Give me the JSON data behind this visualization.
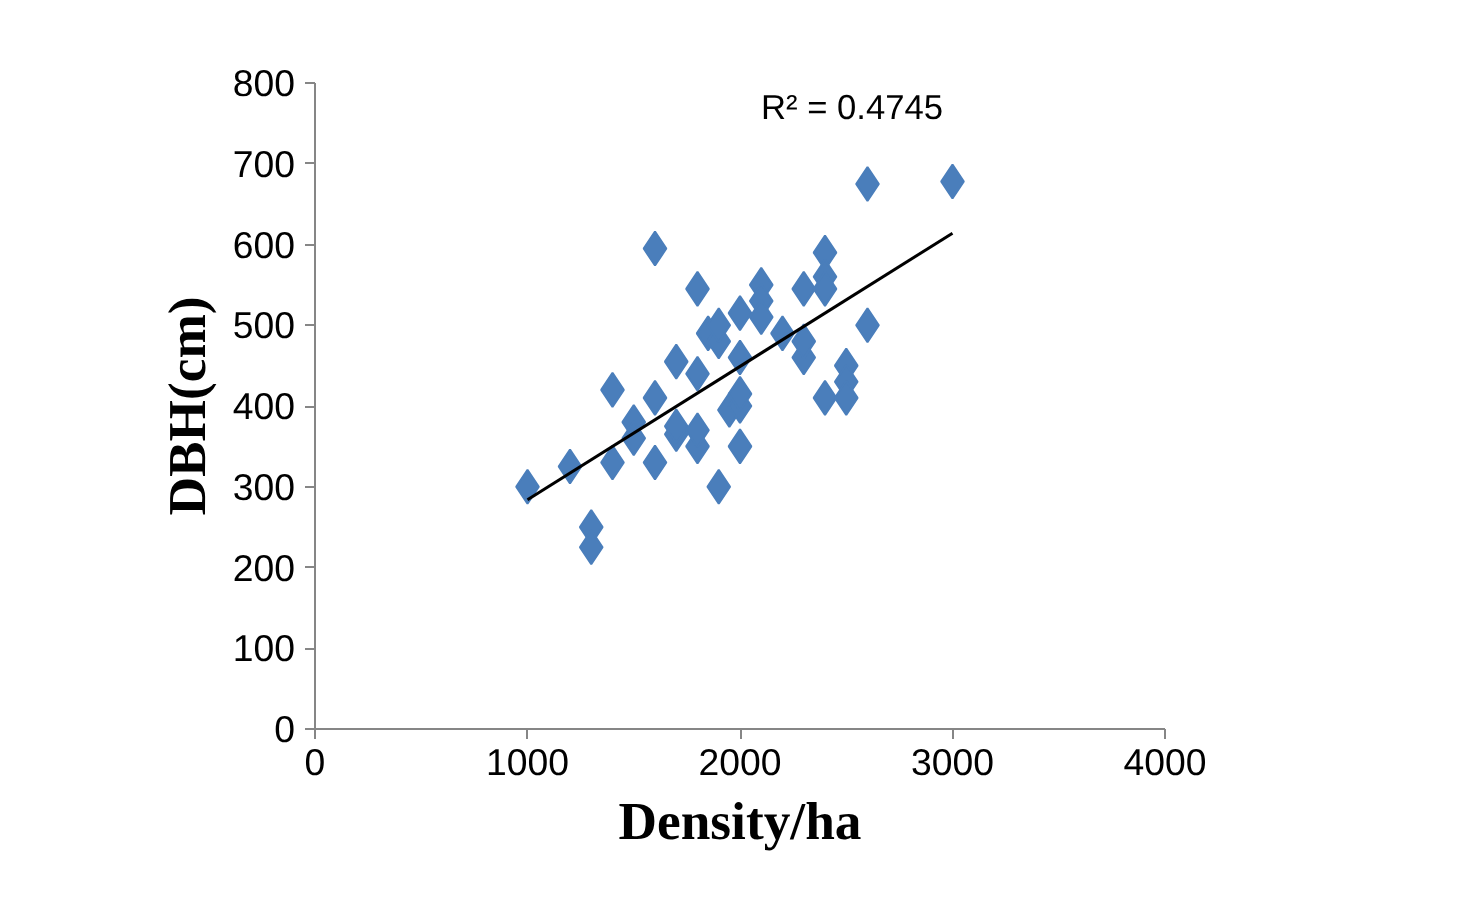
{
  "chart_data": {
    "type": "scatter",
    "xlabel": "Density/ha",
    "ylabel": "DBH(cm)",
    "xlim": [
      0,
      4000
    ],
    "xticks": [
      0,
      1000,
      2000,
      3000,
      4000
    ],
    "ylim": [
      0,
      800
    ],
    "yticks": [
      0,
      100,
      200,
      300,
      400,
      500,
      600,
      700,
      800
    ],
    "grid": false,
    "marker": "diamond",
    "annotations": [
      "R² = 0.4745"
    ],
    "series": [
      {
        "color": "#4a7ebb",
        "x": [
          1000,
          1200,
          1300,
          1300,
          1400,
          1400,
          1500,
          1500,
          1600,
          1600,
          1600,
          1700,
          1700,
          1700,
          1800,
          1800,
          1800,
          1800,
          1850,
          1900,
          1900,
          1900,
          1950,
          2000,
          2000,
          2000,
          2000,
          2000,
          2100,
          2100,
          2100,
          2200,
          2300,
          2300,
          2300,
          2400,
          2400,
          2400,
          2400,
          2500,
          2500,
          2500,
          2600,
          2600,
          3000
        ],
        "values": [
          300,
          325,
          250,
          225,
          330,
          420,
          380,
          360,
          410,
          330,
          595,
          455,
          365,
          375,
          440,
          545,
          350,
          370,
          490,
          300,
          480,
          500,
          395,
          515,
          350,
          400,
          415,
          460,
          550,
          530,
          510,
          490,
          545,
          460,
          480,
          590,
          560,
          545,
          410,
          450,
          430,
          410,
          500,
          675,
          678
        ]
      },
      {
        "type": "line",
        "color": "#000000",
        "marker": "none",
        "x": [
          1000,
          3000
        ],
        "values": [
          284,
          614
        ]
      }
    ]
  }
}
